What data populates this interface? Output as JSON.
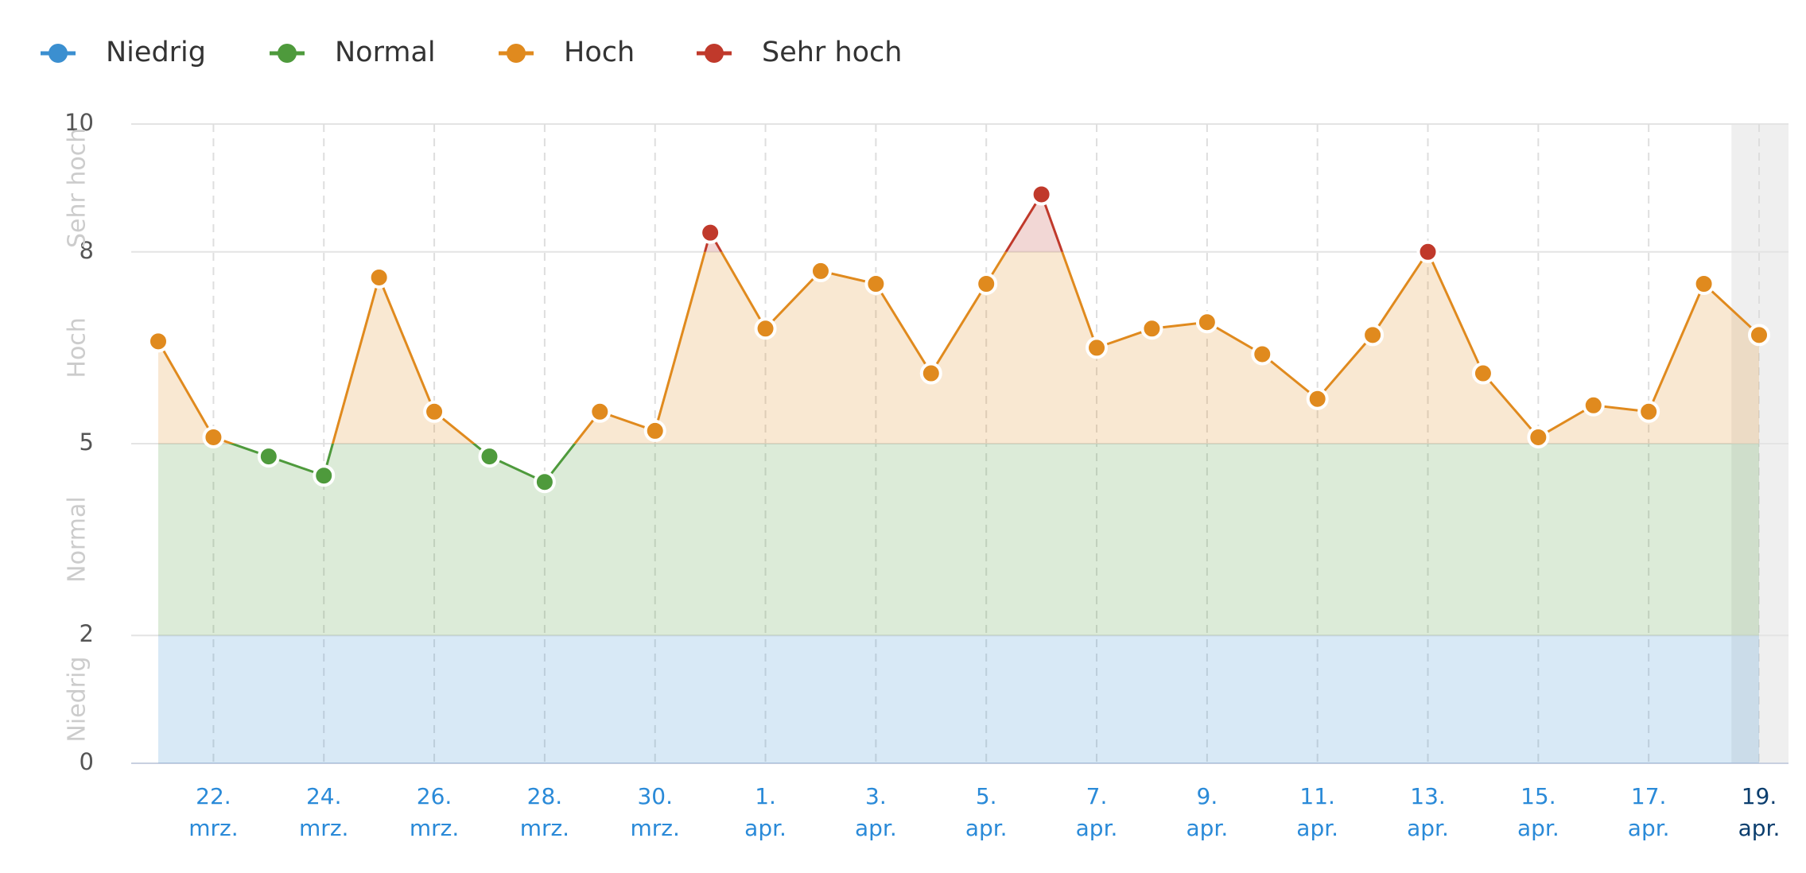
{
  "chart_data": {
    "type": "line",
    "zones": [
      {
        "name": "Niedrig",
        "color": "#3b8fd0",
        "from": 0,
        "to": 2
      },
      {
        "name": "Normal",
        "color": "#4e9a3c",
        "from": 2,
        "to": 5
      },
      {
        "name": "Hoch",
        "color": "#e08a1e",
        "from": 5,
        "to": 8
      },
      {
        "name": "Sehr hoch",
        "color": "#c0392b",
        "from": 8,
        "to": 10
      }
    ],
    "categories": [
      null,
      "22. mrz.",
      null,
      "24. mrz.",
      null,
      "26. mrz.",
      null,
      "28. mrz.",
      null,
      "30. mrz.",
      null,
      "1. apr.",
      null,
      "3. apr.",
      null,
      "5. apr.",
      null,
      "7. apr.",
      null,
      "9. apr.",
      null,
      "11. apr.",
      null,
      "13. apr.",
      null,
      "15. apr.",
      null,
      "17. apr.",
      null,
      "19. apr."
    ],
    "values": [
      6.6,
      5.1,
      4.8,
      4.5,
      7.6,
      5.5,
      4.8,
      4.4,
      5.5,
      5.2,
      8.3,
      6.8,
      7.7,
      7.5,
      6.1,
      7.5,
      8.9,
      6.5,
      6.8,
      6.9,
      6.4,
      5.7,
      6.7,
      8.0,
      6.1,
      5.1,
      5.6,
      5.5,
      7.5,
      6.7
    ],
    "ylim": [
      0,
      10
    ],
    "yticks": [
      0,
      2,
      5,
      8,
      10
    ],
    "grid": true
  }
}
